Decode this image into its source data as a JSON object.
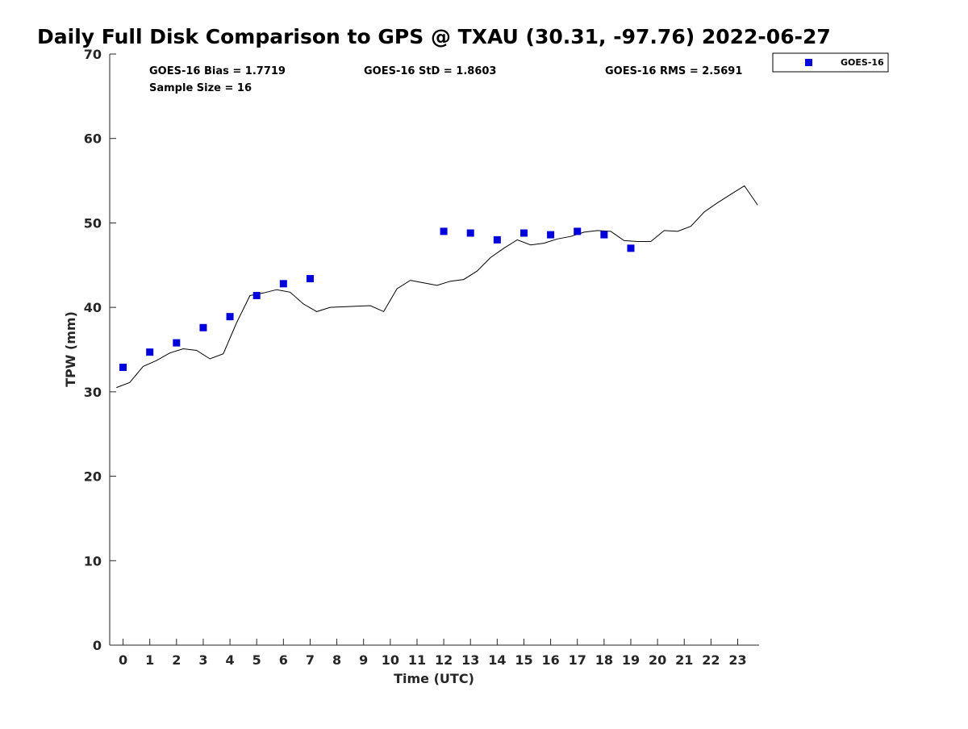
{
  "chart_data": {
    "type": "scatter",
    "title": "Daily Full Disk Comparison to GPS @ TXAU (30.31, -97.76) 2022-06-27",
    "xlabel": "Time (UTC)",
    "ylabel": "TPW (mm)",
    "xlim": [
      -0.5,
      23.8
    ],
    "ylim": [
      0,
      70
    ],
    "x_ticks": [
      0,
      1,
      2,
      3,
      4,
      5,
      6,
      7,
      8,
      9,
      10,
      11,
      12,
      13,
      14,
      15,
      16,
      17,
      18,
      19,
      20,
      21,
      22,
      23
    ],
    "y_ticks": [
      0,
      10,
      20,
      30,
      40,
      50,
      60,
      70
    ],
    "grid": false,
    "legend_position": "top-right",
    "stats": {
      "bias": "GOES-16 Bias = 1.7719",
      "std": "GOES-16 StD = 1.8603",
      "rms": "GOES-16 RMS = 2.5691",
      "sample": "Sample Size = 16"
    },
    "series": [
      {
        "name": "GOES-16",
        "kind": "scatter",
        "color": "#0000dd",
        "marker": "square",
        "x": [
          0,
          1,
          2,
          3,
          4,
          5,
          6,
          7,
          12,
          13,
          14,
          15,
          16,
          17,
          18,
          19
        ],
        "y": [
          32.9,
          34.7,
          35.8,
          37.6,
          38.9,
          41.4,
          42.8,
          43.4,
          49.0,
          48.8,
          48.0,
          48.8,
          48.6,
          49.0,
          48.6,
          47.0
        ]
      },
      {
        "kind": "line",
        "color": "#000000",
        "x": [
          -0.25,
          0.25,
          0.75,
          1.25,
          1.75,
          2.25,
          2.75,
          3.25,
          3.75,
          4.25,
          4.75,
          5.25,
          5.75,
          6.25,
          6.75,
          7.25,
          7.75,
          9.25,
          9.75,
          10.25,
          10.75,
          11.25,
          11.75,
          12.25,
          12.75,
          13.25,
          13.75,
          14.25,
          14.75,
          15.25,
          15.75,
          16.25,
          16.75,
          17.25,
          17.75,
          18.25,
          18.75,
          19.25,
          19.75,
          20.25,
          20.75,
          21.25,
          21.75,
          22.25,
          22.75,
          23.25,
          23.75
        ],
        "y": [
          30.5,
          31.1,
          33.0,
          33.7,
          34.6,
          35.1,
          34.9,
          33.9,
          34.5,
          38.2,
          41.4,
          41.7,
          42.1,
          41.8,
          40.4,
          39.5,
          40.0,
          40.2,
          39.5,
          42.2,
          43.2,
          42.9,
          42.6,
          43.1,
          43.3,
          44.3,
          45.9,
          47.0,
          48.0,
          47.4,
          47.6,
          48.1,
          48.4,
          48.9,
          49.1,
          49.0,
          47.9,
          47.8,
          47.8,
          49.1,
          49.0,
          49.6,
          51.3,
          52.4,
          53.4,
          54.4,
          52.1
        ]
      }
    ]
  }
}
